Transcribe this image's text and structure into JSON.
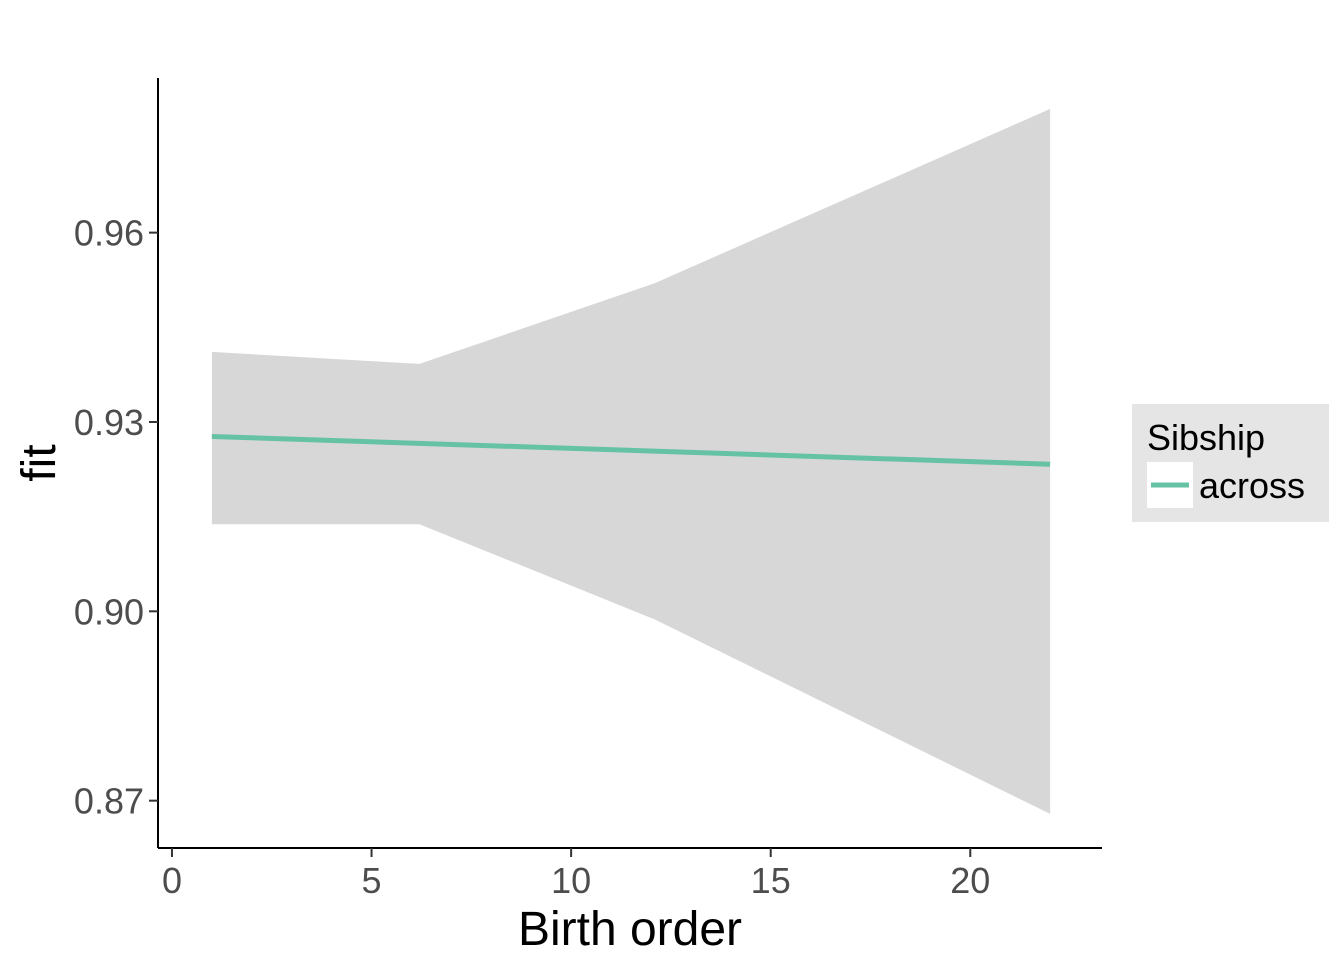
{
  "chart_data": {
    "type": "line",
    "title": "",
    "xlabel": "Birth order",
    "ylabel": "fit",
    "xlim": [
      -0.35,
      23.3
    ],
    "ylim": [
      0.8625,
      0.9845
    ],
    "xticks": [
      0,
      5,
      10,
      15,
      20
    ],
    "xtick_labels": [
      "0",
      "5",
      "10",
      "15",
      "20"
    ],
    "yticks": [
      0.87,
      0.9,
      0.93,
      0.96
    ],
    "ytick_labels": [
      "0.87",
      "0.90",
      "0.93",
      "0.96"
    ],
    "grid": false,
    "legend": {
      "title": "Sibship",
      "position": "right",
      "entries": [
        {
          "label": "across",
          "color": "#66c2a5"
        }
      ]
    },
    "series": [
      {
        "name": "across",
        "color": "#66c2a5",
        "x": [
          1,
          22
        ],
        "y": [
          0.9277,
          0.9233
        ]
      }
    ],
    "ribbon": {
      "color": "#d7d7d7",
      "x": [
        1,
        6.2,
        12.1,
        22
      ],
      "upper": [
        0.9411,
        0.9392,
        0.952,
        0.9796
      ],
      "lower": [
        0.9138,
        0.9138,
        0.8987,
        0.8679
      ]
    }
  }
}
